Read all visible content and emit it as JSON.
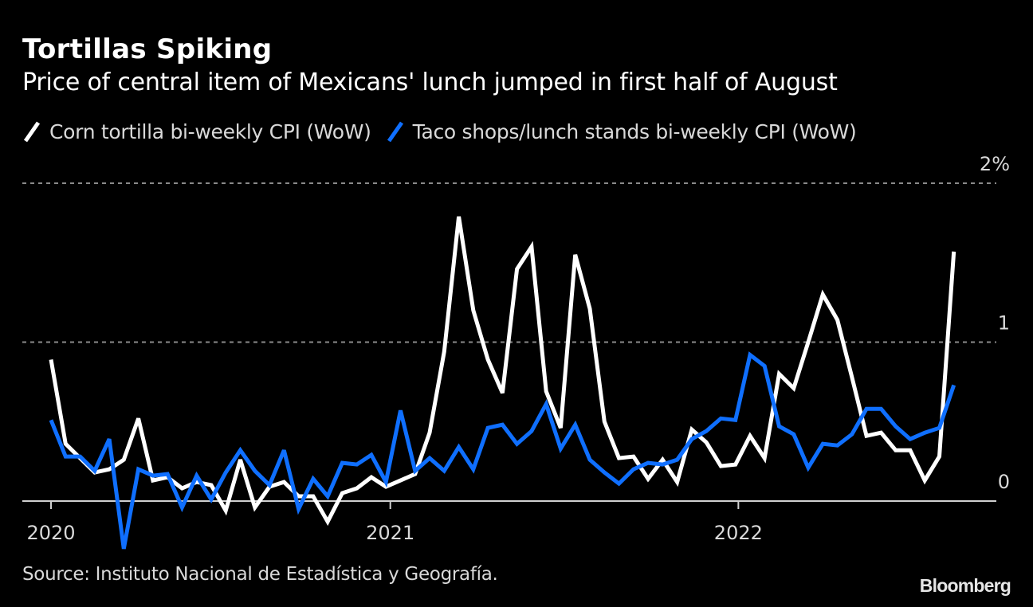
{
  "header": {
    "title": "Tortillas Spiking",
    "subtitle": "Price of central item of Mexicans' lunch jumped in first half of August"
  },
  "footer": {
    "source": "Source: Instituto Nacional de Estadística y Geografía.",
    "brand": "Bloomberg"
  },
  "chart_data": {
    "type": "line",
    "title": "Tortillas Spiking",
    "subtitle": "Price of central item of Mexicans' lunch jumped in first half of August",
    "xlabel": "",
    "ylabel": "",
    "x_description": "Bi-weekly periods, first half of Jan 2020 through first half of Aug 2022 (index 0-62)",
    "x": [
      0,
      1,
      2,
      3,
      4,
      5,
      6,
      7,
      8,
      9,
      10,
      11,
      12,
      13,
      14,
      15,
      16,
      17,
      18,
      19,
      20,
      21,
      22,
      23,
      24,
      25,
      26,
      27,
      28,
      29,
      30,
      31,
      32,
      33,
      34,
      35,
      36,
      37,
      38,
      39,
      40,
      41,
      42,
      43,
      44,
      45,
      46,
      47,
      48,
      49,
      50,
      51,
      52,
      53,
      54,
      55,
      56,
      57,
      58,
      59,
      60,
      61,
      62
    ],
    "x_ticks": [
      {
        "label": "2020",
        "index": 0
      },
      {
        "label": "2021",
        "index": 23.3
      },
      {
        "label": "2022",
        "index": 47.2
      }
    ],
    "y_ticks": [
      {
        "label": "0",
        "value": 0
      },
      {
        "label": "1",
        "value": 1
      },
      {
        "label": "2%",
        "value": 2
      }
    ],
    "ylim": [
      -0.35,
      2
    ],
    "grid": "horizontal-dotted",
    "legend_position": "top-left",
    "series": [
      {
        "name": "Corn tortilla bi-weekly CPI (WoW)",
        "color": "#ffffff",
        "values": [
          0.89,
          0.36,
          0.27,
          0.18,
          0.2,
          0.26,
          0.52,
          0.13,
          0.15,
          0.08,
          0.12,
          0.1,
          -0.06,
          0.26,
          -0.04,
          0.09,
          0.12,
          0.03,
          0.03,
          -0.13,
          0.05,
          0.08,
          0.15,
          0.09,
          0.13,
          0.17,
          0.43,
          0.94,
          1.79,
          1.2,
          0.89,
          0.68,
          1.46,
          1.6,
          0.69,
          0.46,
          1.55,
          1.21,
          0.5,
          0.27,
          0.28,
          0.14,
          0.26,
          0.12,
          0.45,
          0.37,
          0.22,
          0.23,
          0.41,
          0.27,
          0.8,
          0.71,
          1.0,
          1.3,
          1.14,
          0.78,
          0.41,
          0.43,
          0.32,
          0.32,
          0.13,
          0.28,
          1.57
        ]
      },
      {
        "name": "Taco shops/lunch stands bi-weekly CPI (WoW)",
        "color": "#0f6fff",
        "values": [
          0.51,
          0.28,
          0.28,
          0.19,
          0.39,
          -0.3,
          0.2,
          0.16,
          0.17,
          -0.04,
          0.16,
          0.01,
          0.18,
          0.32,
          0.19,
          0.1,
          0.32,
          -0.05,
          0.14,
          0.03,
          0.24,
          0.23,
          0.29,
          0.12,
          0.57,
          0.19,
          0.27,
          0.19,
          0.34,
          0.2,
          0.46,
          0.48,
          0.36,
          0.44,
          0.61,
          0.33,
          0.48,
          0.26,
          0.18,
          0.11,
          0.2,
          0.24,
          0.23,
          0.26,
          0.39,
          0.44,
          0.52,
          0.51,
          0.92,
          0.85,
          0.47,
          0.42,
          0.21,
          0.36,
          0.35,
          0.42,
          0.58,
          0.58,
          0.47,
          0.39,
          0.43,
          0.46,
          0.73
        ]
      }
    ]
  }
}
